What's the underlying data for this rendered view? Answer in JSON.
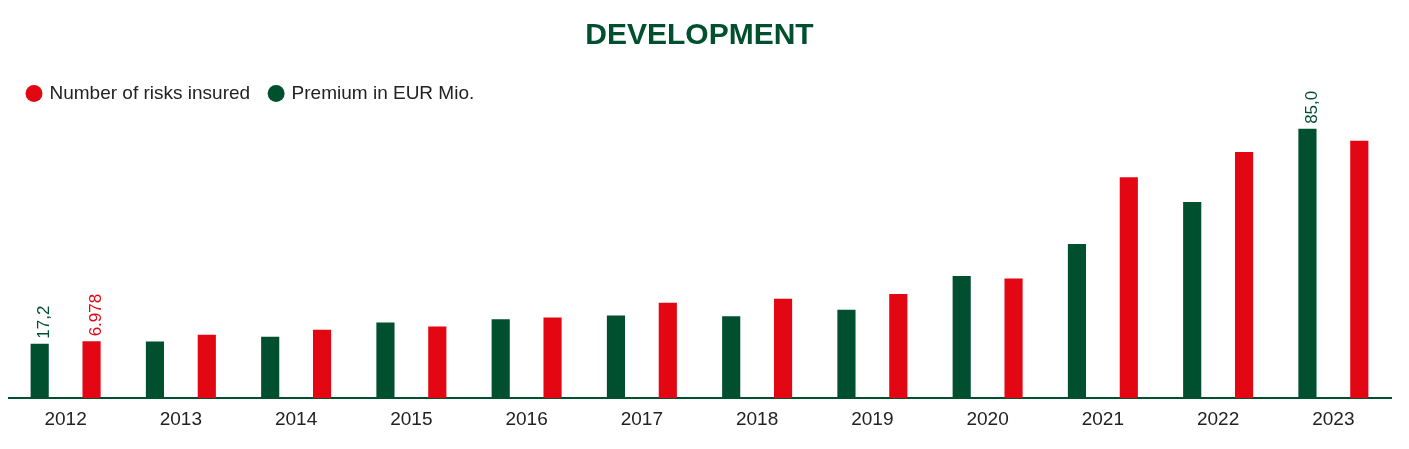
{
  "chart_data": {
    "type": "bar",
    "title": "DEVELOPMENT",
    "categories": [
      "2012",
      "2013",
      "2014",
      "2015",
      "2016",
      "2017",
      "2018",
      "2019",
      "2020",
      "2021",
      "2022",
      "2023"
    ],
    "series": [
      {
        "name": "Premium in EUR Mio.",
        "color": "#005030",
        "values": [
          17.2,
          17.9,
          19.4,
          23.9,
          24.9,
          26.1,
          25.9,
          27.9,
          38.6,
          48.7,
          61.9,
          85.0
        ],
        "value_labels": [
          "17,2",
          null,
          null,
          null,
          null,
          null,
          null,
          null,
          null,
          null,
          null,
          "85,0"
        ]
      },
      {
        "name": "Number of risks insured",
        "color": "#e30613",
        "axis": "y2",
        "values": [
          6978,
          7800,
          8400,
          8800,
          9900,
          11700,
          12200,
          12800,
          14700,
          27100,
          30200,
          31600
        ],
        "value_labels": [
          "6.978",
          null,
          null,
          null,
          null,
          null,
          null,
          null,
          null,
          null,
          null,
          null
        ]
      }
    ],
    "legend": "top left",
    "grid": false
  }
}
